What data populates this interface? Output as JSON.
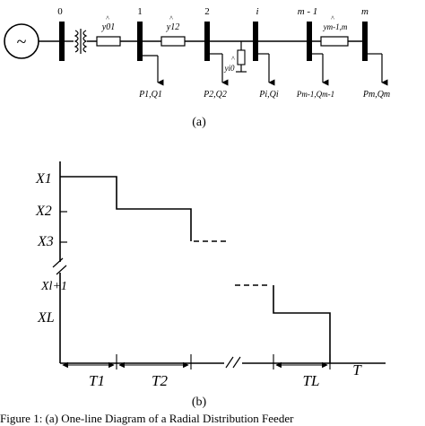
{
  "diagram_a": {
    "caption": "(a)",
    "source_symbol": "~",
    "buses": [
      {
        "id": "bus-0",
        "label": "0",
        "load": ""
      },
      {
        "id": "bus-1",
        "label": "1",
        "load": "P1,Q1"
      },
      {
        "id": "bus-2",
        "label": "2",
        "load": "P2,Q2"
      },
      {
        "id": "bus-i",
        "label": "i",
        "load": "Pi,Qi"
      },
      {
        "id": "bus-m1",
        "label": "m - 1",
        "load": "Pm-1,Qm-1"
      },
      {
        "id": "bus-m",
        "label": "m",
        "load": "Pm,Qm"
      }
    ],
    "admittances": {
      "y01": "y01",
      "y12": "y12",
      "yi0": "yi0",
      "ym1m": "ym-1,m",
      "hat": "^"
    }
  },
  "diagram_b": {
    "caption": "(b)",
    "y_labels": [
      "X1",
      "X2",
      "X3",
      "Xl+1",
      "XL"
    ],
    "x_axis_label": "T",
    "intervals": [
      "T1",
      "T2",
      "TL"
    ]
  },
  "figure_caption": "Figure 1: (a) One-line Diagram of a Radial Distribution Feeder"
}
